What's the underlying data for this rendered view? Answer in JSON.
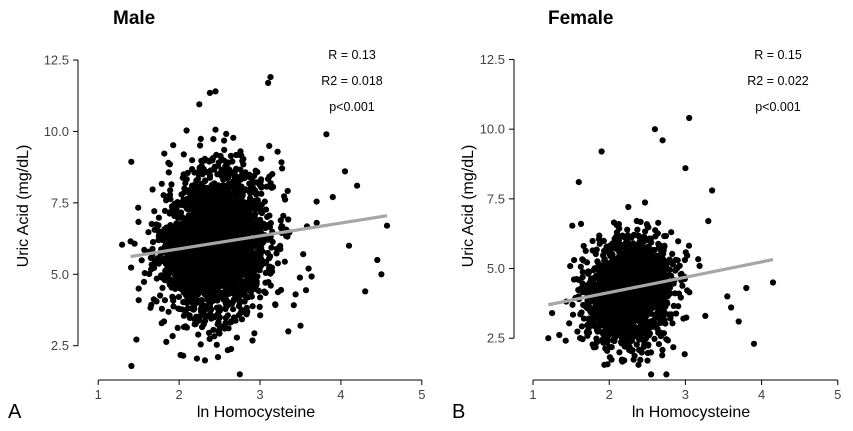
{
  "chart_data": [
    {
      "type": "scatter",
      "panel_letter": "A",
      "title": "Male",
      "xlabel": "ln Homocysteine",
      "ylabel": "Uric Acid (mg/dL)",
      "xlim": [
        0.75,
        5.2
      ],
      "ylim": [
        1.3,
        13.2
      ],
      "xticks": [
        1,
        2,
        3,
        4,
        5
      ],
      "yticks": [
        2.5,
        5.0,
        7.5,
        10.0,
        12.5
      ],
      "ytick_labels": [
        "2.5",
        "5.0",
        "7.5",
        "10.0",
        "12.5"
      ],
      "grid": false,
      "point_color": "#000000",
      "cloud": {
        "x_center": 2.45,
        "x_sd": 0.33,
        "y_center": 6.1,
        "y_sd": 1.25,
        "n": 2600
      },
      "extra_points": [
        {
          "x": 2.75,
          "y": 1.5
        },
        {
          "x": 2.05,
          "y": 2.15
        },
        {
          "x": 2.22,
          "y": 2.05
        },
        {
          "x": 2.48,
          "y": 2.1
        },
        {
          "x": 3.13,
          "y": 11.9
        },
        {
          "x": 3.1,
          "y": 11.7
        },
        {
          "x": 2.38,
          "y": 11.35
        },
        {
          "x": 2.45,
          "y": 11.4
        },
        {
          "x": 2.25,
          "y": 10.95
        },
        {
          "x": 3.82,
          "y": 9.9
        },
        {
          "x": 4.57,
          "y": 6.7
        },
        {
          "x": 4.45,
          "y": 5.5
        },
        {
          "x": 4.3,
          "y": 4.4
        },
        {
          "x": 1.5,
          "y": 4.5
        },
        {
          "x": 1.4,
          "y": 6.15
        },
        {
          "x": 3.5,
          "y": 3.2
        },
        {
          "x": 3.35,
          "y": 3.0
        },
        {
          "x": 4.2,
          "y": 8.1
        },
        {
          "x": 4.05,
          "y": 8.6
        },
        {
          "x": 3.9,
          "y": 7.7
        },
        {
          "x": 4.5,
          "y": 5.0
        },
        {
          "x": 4.1,
          "y": 6.0
        },
        {
          "x": 3.7,
          "y": 6.8
        },
        {
          "x": 3.6,
          "y": 5.2
        }
      ],
      "trend_line": {
        "x": [
          1.4,
          4.57
        ],
        "y": [
          5.62,
          7.05
        ],
        "color": "#a6a6a6"
      },
      "annotations": [
        "R = 0.13",
        "R2 = 0.018",
        "p<0.001"
      ]
    },
    {
      "type": "scatter",
      "panel_letter": "B",
      "title": "Female",
      "xlabel": "ln Homocysteine",
      "ylabel": "Uric Acid (mg/dL)",
      "xlim": [
        0.75,
        5.2
      ],
      "ylim": [
        1.0,
        13.2
      ],
      "xticks": [
        1,
        2,
        3,
        4,
        5
      ],
      "yticks": [
        2.5,
        5.0,
        7.5,
        10.0,
        12.5
      ],
      "ytick_labels": [
        "2.5",
        "5.0",
        "7.5",
        "10.0",
        "12.5"
      ],
      "grid": false,
      "point_color": "#000000",
      "cloud": {
        "x_center": 2.25,
        "x_sd": 0.28,
        "y_center": 4.15,
        "y_sd": 0.95,
        "n": 1900
      },
      "extra_points": [
        {
          "x": 3.05,
          "y": 10.4
        },
        {
          "x": 2.6,
          "y": 10.0
        },
        {
          "x": 2.7,
          "y": 9.6
        },
        {
          "x": 1.9,
          "y": 9.2
        },
        {
          "x": 3.0,
          "y": 8.6
        },
        {
          "x": 3.35,
          "y": 7.8
        },
        {
          "x": 4.15,
          "y": 4.5
        },
        {
          "x": 3.9,
          "y": 2.3
        },
        {
          "x": 1.2,
          "y": 2.5
        },
        {
          "x": 1.25,
          "y": 3.4
        },
        {
          "x": 2.75,
          "y": 1.2
        },
        {
          "x": 2.55,
          "y": 1.2
        },
        {
          "x": 3.8,
          "y": 4.3
        },
        {
          "x": 3.7,
          "y": 3.1
        },
        {
          "x": 3.55,
          "y": 4.0
        },
        {
          "x": 1.6,
          "y": 8.1
        },
        {
          "x": 3.3,
          "y": 6.7
        },
        {
          "x": 3.6,
          "y": 3.6
        }
      ],
      "trend_line": {
        "x": [
          1.2,
          4.15
        ],
        "y": [
          3.7,
          5.32
        ],
        "color": "#a6a6a6"
      },
      "annotations": [
        "R = 0.15",
        "R2 = 0.022",
        "p<0.001"
      ]
    }
  ]
}
